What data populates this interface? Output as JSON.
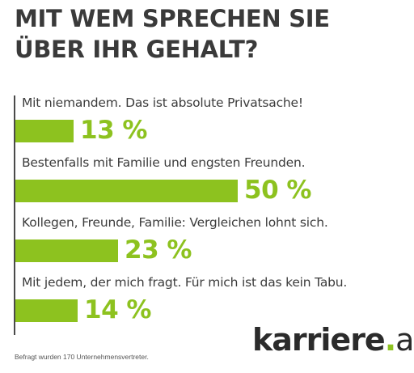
{
  "title_line1": "MIT WEM SPRECHEN SIE",
  "title_line2": "ÜBER IHR GEHALT?",
  "footnote": "Befragt wurden 170 Unternehmensvertreter.",
  "logo": {
    "name": "karriere",
    "dot": ".",
    "tld": "at"
  },
  "colors": {
    "bar": "#8dc21f",
    "text": "#3c3c3c",
    "axis": "#4a4a4a"
  },
  "chart_data": {
    "type": "bar",
    "orientation": "horizontal",
    "title": "MIT WEM SPRECHEN SIE ÜBER IHR GEHALT?",
    "xlim": [
      0,
      100
    ],
    "grid": false,
    "categories": [
      "Mit niemandem. Das ist absolute Privatsache!",
      "Bestenfalls mit Familie und engsten Freunden.",
      "Kollegen, Freunde, Familie: Vergleichen lohnt sich.",
      "Mit jedem, der mich fragt. Für mich ist das kein Tabu."
    ],
    "values": [
      13,
      50,
      23,
      14
    ],
    "value_labels": [
      "13 %",
      "50 %",
      "23 %",
      "14 %"
    ]
  }
}
